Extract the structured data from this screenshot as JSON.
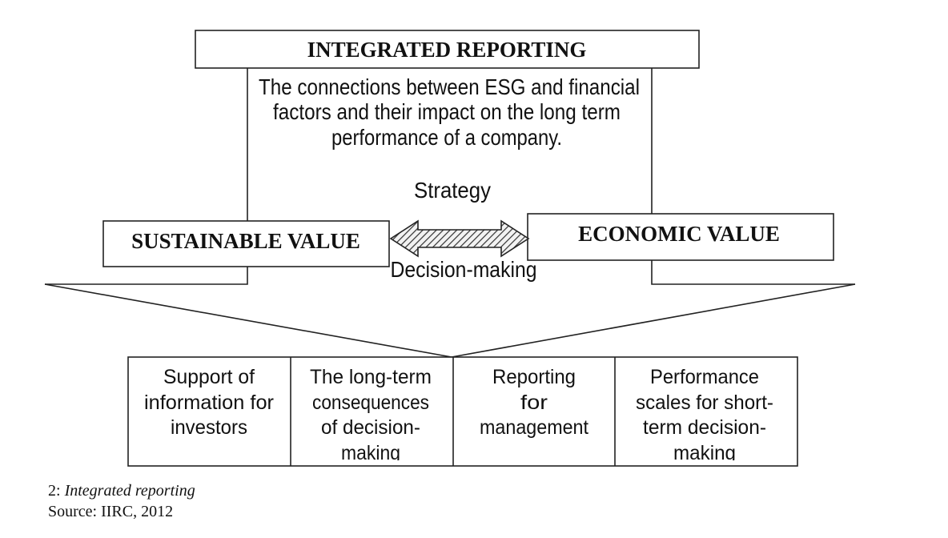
{
  "header": {
    "title": "INTEGRATED REPORTING"
  },
  "description": [
    "The connections between ESG and financial",
    "factors and their impact on the long term",
    "performance of a company."
  ],
  "strategy_label": "Strategy",
  "decision_label": "Decision-making",
  "left_box": {
    "label": "SUSTAINABLE VALUE"
  },
  "right_box": {
    "label": "ECONOMIC VALUE"
  },
  "cells": [
    {
      "lines": [
        "Support of",
        "information for",
        "investors"
      ]
    },
    {
      "lines": [
        "The long-term",
        "consequences",
        "of decision-",
        "making"
      ]
    },
    {
      "lines": [
        "Reporting",
        "for",
        "management"
      ]
    },
    {
      "lines": [
        "Performance",
        "scales for short-",
        "term decision-",
        "making"
      ]
    }
  ],
  "caption": {
    "number": "2:",
    "title": "Integrated reporting",
    "source": "Source: IIRC, 2012"
  }
}
